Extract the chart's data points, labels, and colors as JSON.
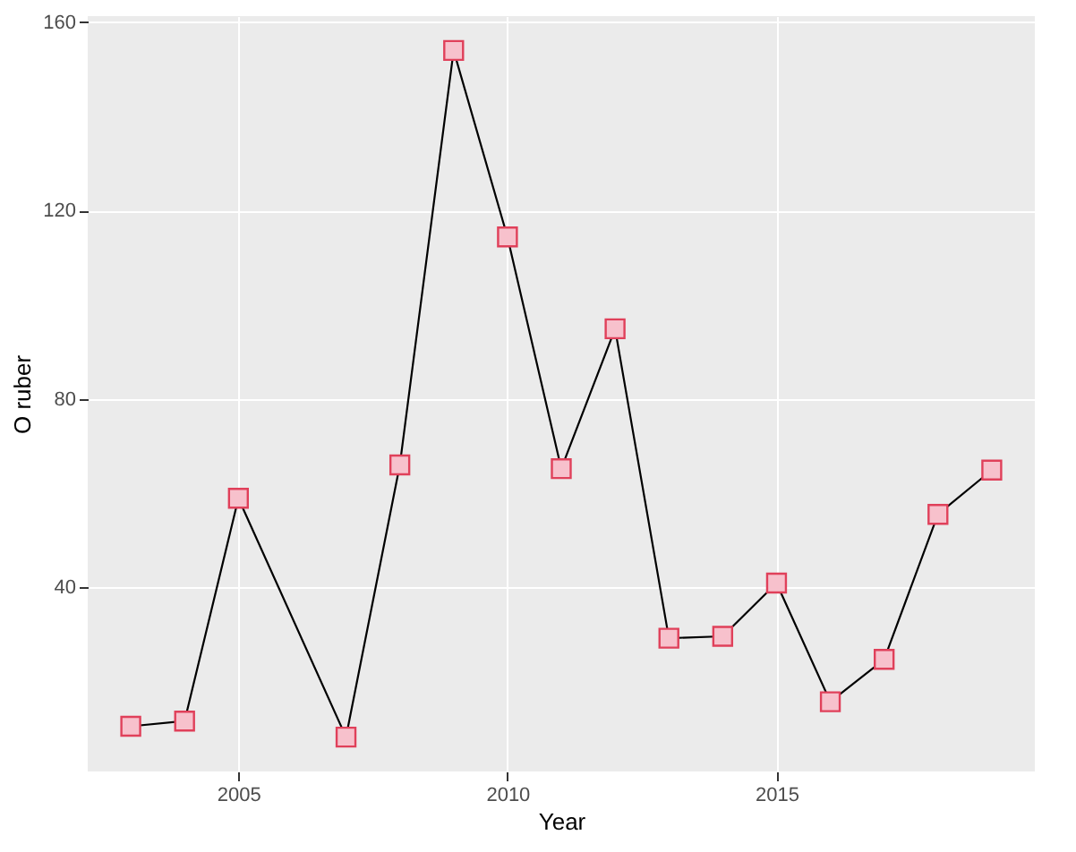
{
  "chart_data": {
    "type": "line",
    "xlabel": "Year",
    "ylabel": "O ruber",
    "x": [
      2003,
      2004,
      2005,
      2007,
      2008,
      2009,
      2010,
      2011,
      2012,
      2013,
      2014,
      2015,
      2016,
      2017,
      2018,
      2019
    ],
    "series": [
      {
        "color": "#000000",
        "values": [
          10.5,
          11.6,
          58.9,
          8.2,
          66,
          154,
          114.4,
          65.2,
          94.9,
          29.2,
          29.6,
          40.9,
          15.7,
          24.7,
          55.5,
          64.9
        ]
      }
    ],
    "xlim": [
      2002.2,
      2019.8
    ],
    "xticks": [
      2005,
      2010,
      2015
    ],
    "ylim": [
      0.9,
      161.3
    ],
    "yticks": [
      40,
      80,
      120,
      160
    ],
    "grid": true,
    "marker": "square",
    "line_style": "solid"
  }
}
